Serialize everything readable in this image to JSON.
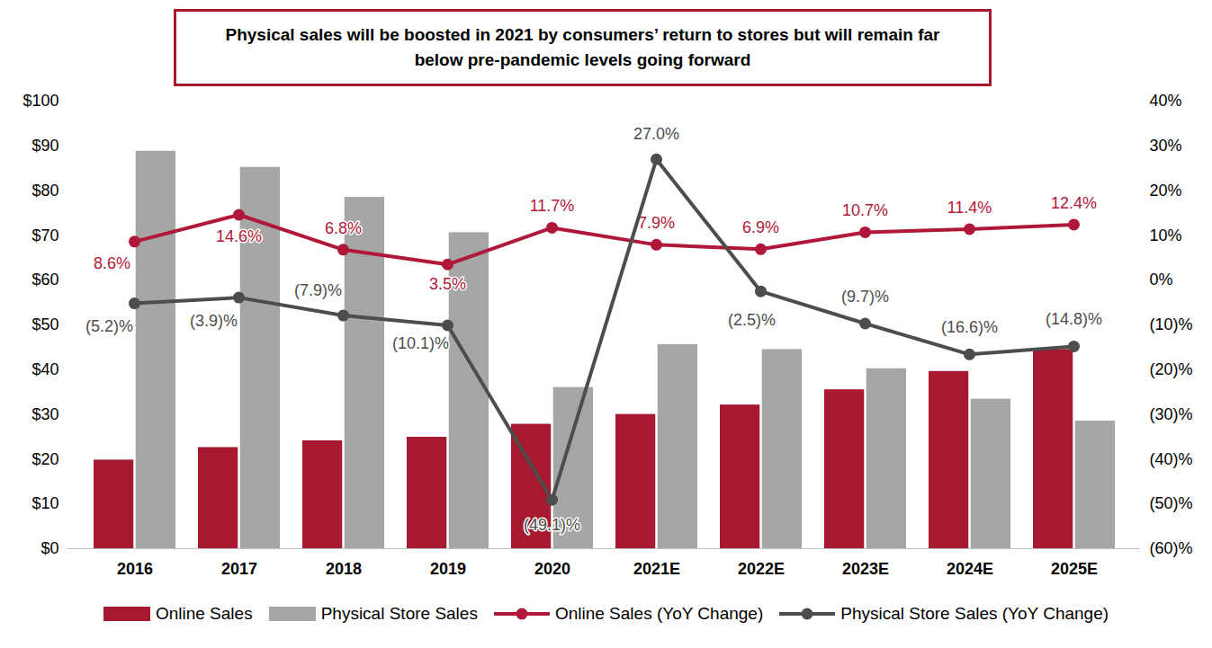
{
  "chart_data": {
    "type": "bar",
    "title": "Physical sales will be boosted in 2021 by consumers’ return to stores but will remain far below pre-pandemic levels going forward",
    "categories": [
      "2016",
      "2017",
      "2018",
      "2019",
      "2020",
      "2021E",
      "2022E",
      "2023E",
      "2024E",
      "2025E"
    ],
    "series": [
      {
        "name": "Online Sales",
        "type": "bar",
        "color": "#a6192e",
        "values": [
          19.8,
          22.6,
          24.1,
          24.9,
          27.8,
          30.0,
          32.1,
          35.5,
          39.6,
          44.5
        ]
      },
      {
        "name": "Physical Store Sales",
        "type": "bar",
        "color": "#a6a6a6",
        "values": [
          88.8,
          85.2,
          78.5,
          70.6,
          36.0,
          45.6,
          44.5,
          40.2,
          33.4,
          28.5
        ]
      },
      {
        "name": "Online Sales (YoY Change)",
        "type": "line",
        "axis": "y2",
        "color": "#b0183a",
        "marker": "circle",
        "data_labels": true,
        "values": [
          8.6,
          14.6,
          6.8,
          3.5,
          11.7,
          7.9,
          6.9,
          10.7,
          11.4,
          12.4
        ],
        "value_labels": [
          "8.6%",
          "14.6%",
          "6.8%",
          "3.5%",
          "11.7%",
          "7.9%",
          "6.9%",
          "10.7%",
          "11.4%",
          "12.4%"
        ]
      },
      {
        "name": "Physical Store Sales (YoY Change)",
        "type": "line",
        "axis": "y2",
        "color": "#4d4d4d",
        "marker": "circle",
        "data_labels": true,
        "values": [
          -5.2,
          -3.9,
          -7.9,
          -10.1,
          -49.1,
          27.0,
          -2.5,
          -9.7,
          -16.6,
          -14.8
        ],
        "value_labels": [
          "(5.2)%",
          "(3.9)%",
          "(7.9)%",
          "(10.1)%",
          "(49.1)%",
          "27.0%",
          "(2.5)%",
          "(9.7)%",
          "(16.6)%",
          "(14.8)%"
        ]
      }
    ],
    "ylim": [
      0,
      100
    ],
    "yticks": [
      {
        "value": 0,
        "label": "$0"
      },
      {
        "value": 10,
        "label": "$10"
      },
      {
        "value": 20,
        "label": "$20"
      },
      {
        "value": 30,
        "label": "$30"
      },
      {
        "value": 40,
        "label": "$40"
      },
      {
        "value": 50,
        "label": "$50"
      },
      {
        "value": 60,
        "label": "$60"
      },
      {
        "value": 70,
        "label": "$70"
      },
      {
        "value": 80,
        "label": "$80"
      },
      {
        "value": 90,
        "label": "$90"
      },
      {
        "value": 100,
        "label": "$100"
      }
    ],
    "y2lim": [
      -60,
      40
    ],
    "y2ticks": [
      {
        "value": -60,
        "label": "(60)%"
      },
      {
        "value": -50,
        "label": "(50)%"
      },
      {
        "value": -40,
        "label": "(40)%"
      },
      {
        "value": -30,
        "label": "(30)%"
      },
      {
        "value": -20,
        "label": "(20)%"
      },
      {
        "value": -10,
        "label": "(10)%"
      },
      {
        "value": 0,
        "label": "0%"
      },
      {
        "value": 10,
        "label": "10%"
      },
      {
        "value": 20,
        "label": "20%"
      },
      {
        "value": 30,
        "label": "30%"
      },
      {
        "value": 40,
        "label": "40%"
      }
    ],
    "grid": false,
    "legend": "bottom"
  }
}
